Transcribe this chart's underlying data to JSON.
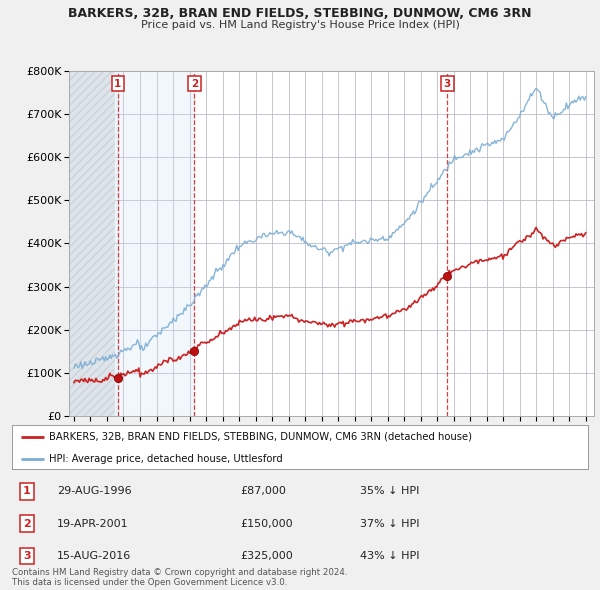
{
  "title": "BARKERS, 32B, BRAN END FIELDS, STEBBING, DUNMOW, CM6 3RN",
  "subtitle": "Price paid vs. HM Land Registry's House Price Index (HPI)",
  "hpi_color": "#7aadd4",
  "price_color": "#cc2222",
  "background_color": "#f0f0f0",
  "plot_bg_color": "#ffffff",
  "ylim": [
    0,
    800000
  ],
  "yticks": [
    0,
    100000,
    200000,
    300000,
    400000,
    500000,
    600000,
    700000,
    800000
  ],
  "ytick_labels": [
    "£0",
    "£100K",
    "£200K",
    "£300K",
    "£400K",
    "£500K",
    "£600K",
    "£700K",
    "£800K"
  ],
  "xlim_start": 1993.7,
  "xlim_end": 2025.5,
  "transactions": [
    {
      "label": "1",
      "date": 1996.66,
      "price": 87000
    },
    {
      "label": "2",
      "date": 2001.3,
      "price": 150000
    },
    {
      "label": "3",
      "date": 2016.62,
      "price": 325000
    }
  ],
  "legend_line1": "BARKERS, 32B, BRAN END FIELDS, STEBBING, DUNMOW, CM6 3RN (detached house)",
  "legend_line2": "HPI: Average price, detached house, Uttlesford",
  "table_rows": [
    {
      "num": "1",
      "date": "29-AUG-1996",
      "price": "£87,000",
      "hpi": "35% ↓ HPI"
    },
    {
      "num": "2",
      "date": "19-APR-2001",
      "price": "£150,000",
      "hpi": "37% ↓ HPI"
    },
    {
      "num": "3",
      "date": "15-AUG-2016",
      "price": "£325,000",
      "hpi": "43% ↓ HPI"
    }
  ],
  "footer": "Contains HM Land Registry data © Crown copyright and database right 2024.\nThis data is licensed under the Open Government Licence v3.0."
}
